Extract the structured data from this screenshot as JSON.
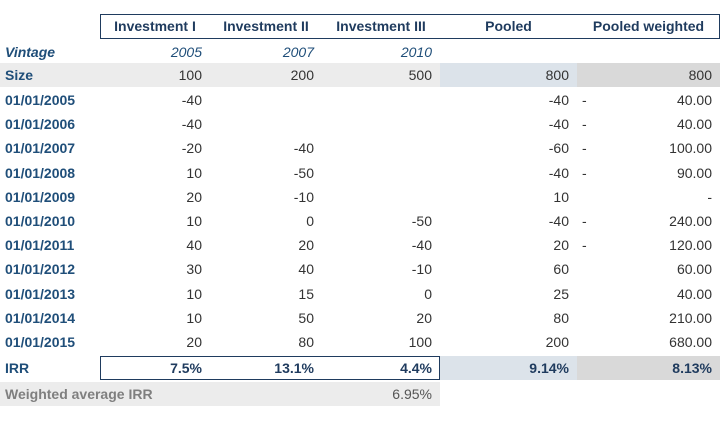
{
  "header": {
    "columns": [
      "Investment I",
      "Investment II",
      "Investment III",
      "Pooled",
      "Pooled weighted"
    ]
  },
  "vintage": {
    "label": "Vintage",
    "values": [
      "2005",
      "2007",
      "2010"
    ]
  },
  "size": {
    "label": "Size",
    "values": [
      "100",
      "200",
      "500",
      "800",
      "800"
    ]
  },
  "flows": {
    "rows": [
      [
        "01/01/2005",
        "-40",
        null,
        null,
        "-40",
        "-",
        "40.00"
      ],
      [
        "01/01/2006",
        "-40",
        null,
        null,
        "-40",
        "-",
        "40.00"
      ],
      [
        "01/01/2007",
        "-20",
        "-40",
        null,
        "-60",
        "-",
        "100.00"
      ],
      [
        "01/01/2008",
        "10",
        "-50",
        null,
        "-40",
        "-",
        "90.00"
      ],
      [
        "01/01/2009",
        "20",
        "-10",
        null,
        "10",
        null,
        "-"
      ],
      [
        "01/01/2010",
        "10",
        "0",
        "-50",
        "-40",
        "-",
        "240.00"
      ],
      [
        "01/01/2011",
        "40",
        "20",
        "-40",
        "20",
        "-",
        "120.00"
      ],
      [
        "01/01/2012",
        "30",
        "40",
        "-10",
        "60",
        null,
        "60.00"
      ],
      [
        "01/01/2013",
        "10",
        "15",
        "0",
        "25",
        null,
        "40.00"
      ],
      [
        "01/01/2014",
        "10",
        "50",
        "20",
        "80",
        null,
        "210.00"
      ],
      [
        "01/01/2015",
        "20",
        "80",
        "100",
        "200",
        null,
        "680.00"
      ]
    ]
  },
  "irr": {
    "label": "IRR",
    "values": [
      "7.5%",
      "13.1%",
      "4.4%",
      "9.14%",
      "8.13%"
    ]
  },
  "weighted_average": {
    "label": "Weighted average IRR",
    "value": "6.95%"
  }
}
